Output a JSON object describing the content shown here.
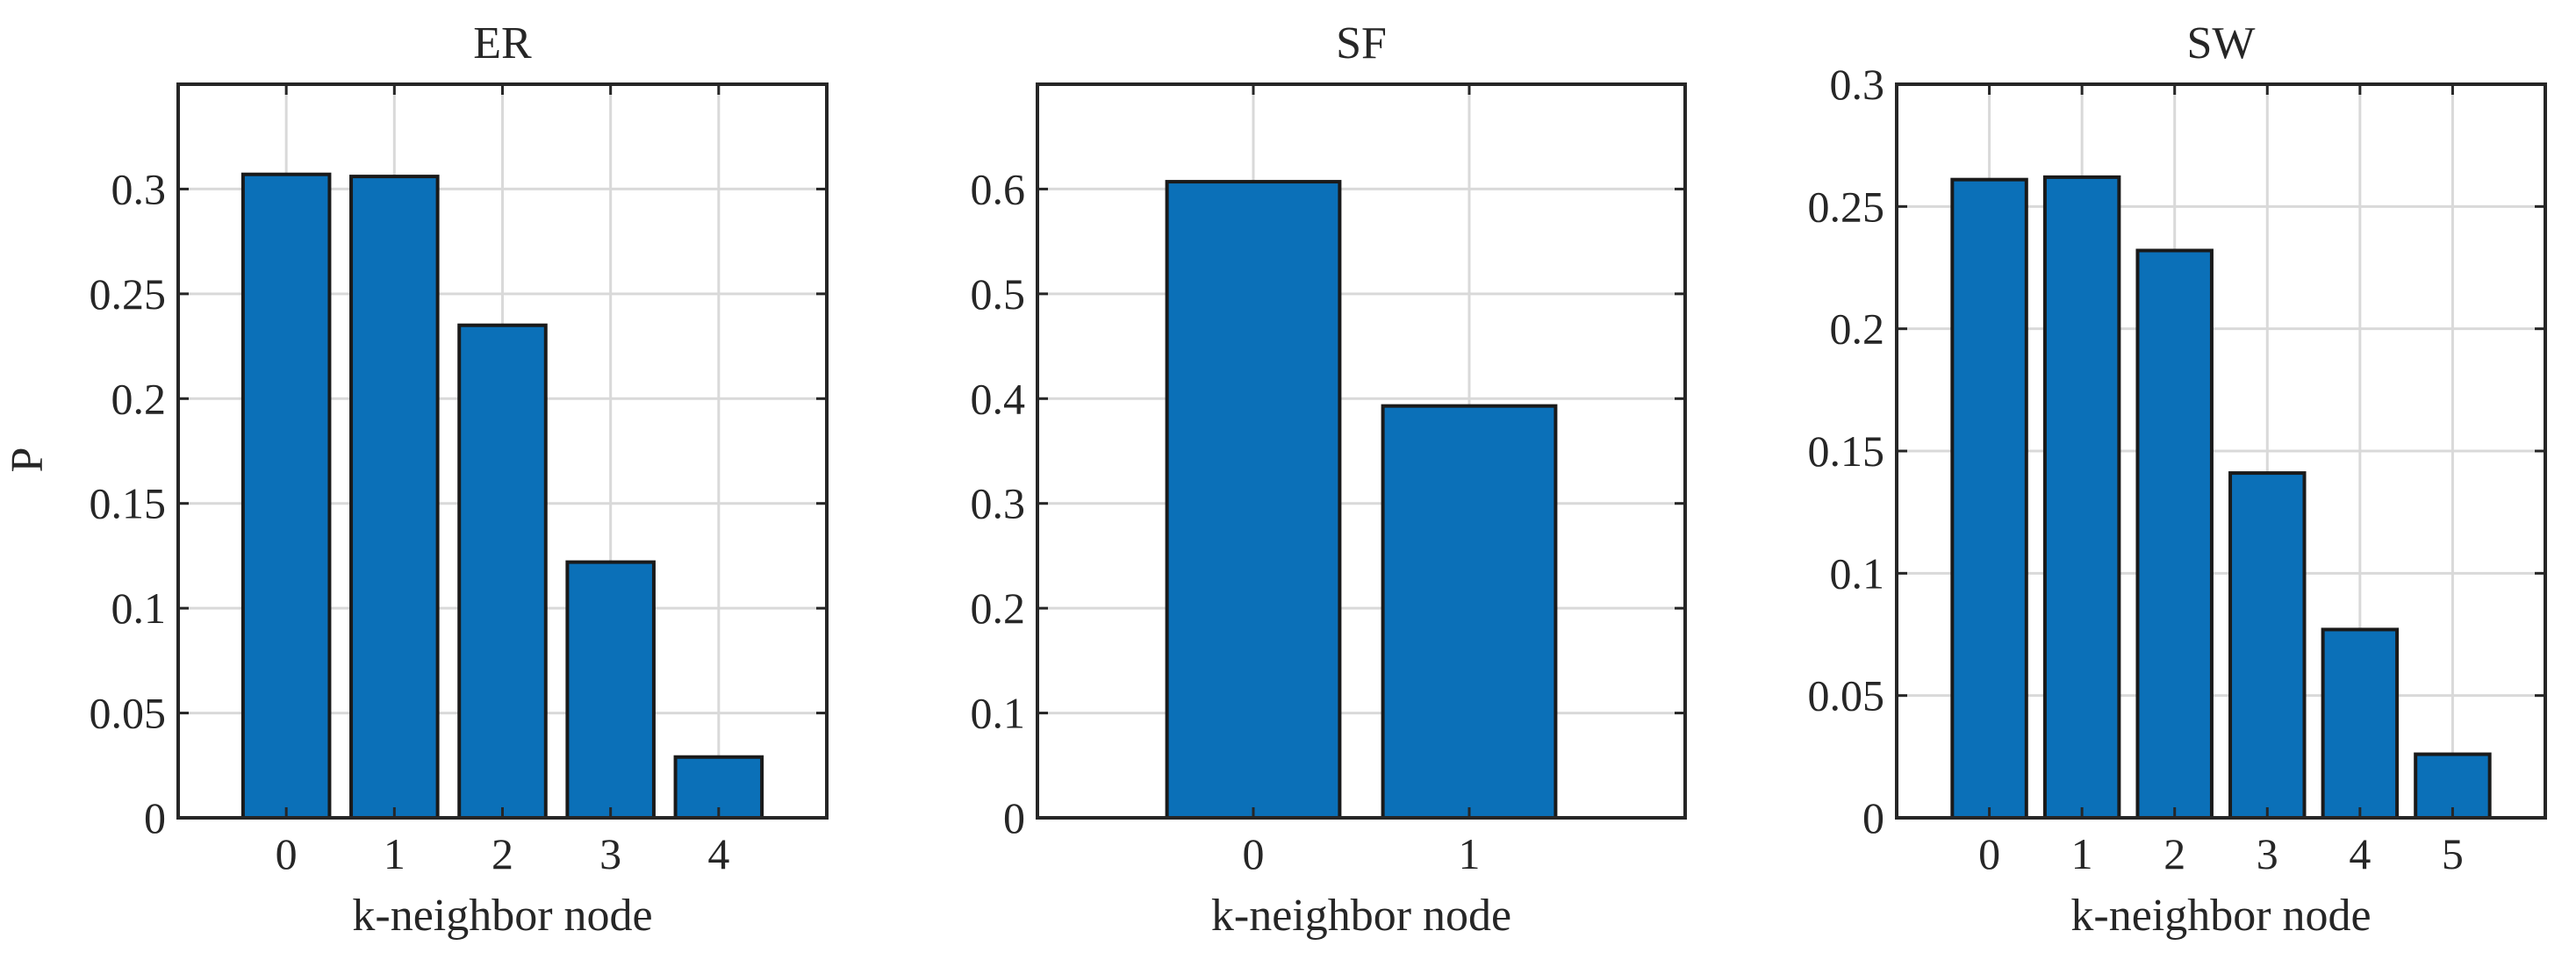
{
  "bar_color": "#0b70b8",
  "chart_data": [
    {
      "type": "bar",
      "title": "ER",
      "xlabel": "k-neighbor node",
      "ylabel": "P",
      "categories": [
        "0",
        "1",
        "2",
        "3",
        "4"
      ],
      "values": [
        0.307,
        0.306,
        0.235,
        0.122,
        0.029
      ],
      "xlim": [
        -1,
        5
      ],
      "ylim": [
        0,
        0.35
      ],
      "yticks": [
        0,
        0.05,
        0.1,
        0.15,
        0.2,
        0.25,
        0.3
      ],
      "ytick_labels": [
        "0",
        "0.05",
        "0.1",
        "0.15",
        "0.2",
        "0.25",
        "0.3"
      ],
      "grid": true,
      "legend": false
    },
    {
      "type": "bar",
      "title": "SF",
      "xlabel": "k-neighbor node",
      "ylabel": "",
      "categories": [
        "0",
        "1"
      ],
      "values": [
        0.607,
        0.393
      ],
      "xlim": [
        -1,
        2
      ],
      "ylim": [
        0,
        0.7
      ],
      "yticks": [
        0,
        0.1,
        0.2,
        0.3,
        0.4,
        0.5,
        0.6
      ],
      "ytick_labels": [
        "0",
        "0.1",
        "0.2",
        "0.3",
        "0.4",
        "0.5",
        "0.6"
      ],
      "grid": true,
      "legend": false
    },
    {
      "type": "bar",
      "title": "SW",
      "xlabel": "k-neighbor node",
      "ylabel": "",
      "categories": [
        "0",
        "1",
        "2",
        "3",
        "4",
        "5"
      ],
      "values": [
        0.261,
        0.262,
        0.232,
        0.141,
        0.077,
        0.026
      ],
      "xlim": [
        -1,
        6
      ],
      "ylim": [
        0,
        0.3
      ],
      "yticks": [
        0,
        0.05,
        0.1,
        0.15,
        0.2,
        0.25,
        0.3
      ],
      "ytick_labels": [
        "0",
        "0.05",
        "0.1",
        "0.15",
        "0.2",
        "0.25",
        "0.3"
      ],
      "grid": true,
      "legend": false
    }
  ]
}
